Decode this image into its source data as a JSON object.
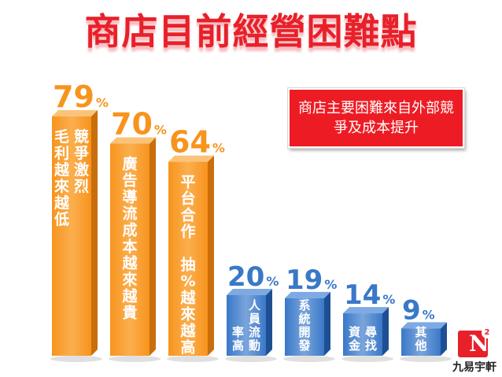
{
  "title": "商店目前經營困難點",
  "callout": "商店主要困難來自外部競爭及成本提升",
  "logo": {
    "mark": "N",
    "superscript": "2",
    "text": "九易宇軒"
  },
  "colors": {
    "title": "#e8202a",
    "callout_bg": "#ed1c24",
    "orange": "#f7941d",
    "blue": "#3a78c8"
  },
  "chart_data": {
    "type": "bar",
    "title": "商店目前經營困難點",
    "ylim": [
      0,
      100
    ],
    "grid": false,
    "legend": "none",
    "bars": [
      {
        "value": 79,
        "label": "79",
        "unit": "%",
        "color": "orange",
        "text_columns": [
          "競爭激烈",
          "毛利越來越低"
        ]
      },
      {
        "value": 70,
        "label": "70",
        "unit": "%",
        "color": "orange",
        "text_columns": [
          "廣告導流成本越來越貴"
        ]
      },
      {
        "value": 64,
        "label": "64",
        "unit": "%",
        "color": "orange",
        "text_columns": [
          "平台合作 抽%越來越高"
        ]
      },
      {
        "value": 20,
        "label": "20",
        "unit": "%",
        "color": "blue",
        "text_columns": [
          "人員流動",
          "率高"
        ]
      },
      {
        "value": 19,
        "label": "19",
        "unit": "%",
        "color": "blue",
        "text_columns": [
          "系統開發"
        ]
      },
      {
        "value": 14,
        "label": "14",
        "unit": "%",
        "color": "blue",
        "text_columns": [
          "尋找",
          "資金"
        ]
      },
      {
        "value": 9,
        "label": "9",
        "unit": "%",
        "color": "blue",
        "text_columns": [
          "其他"
        ]
      }
    ]
  }
}
